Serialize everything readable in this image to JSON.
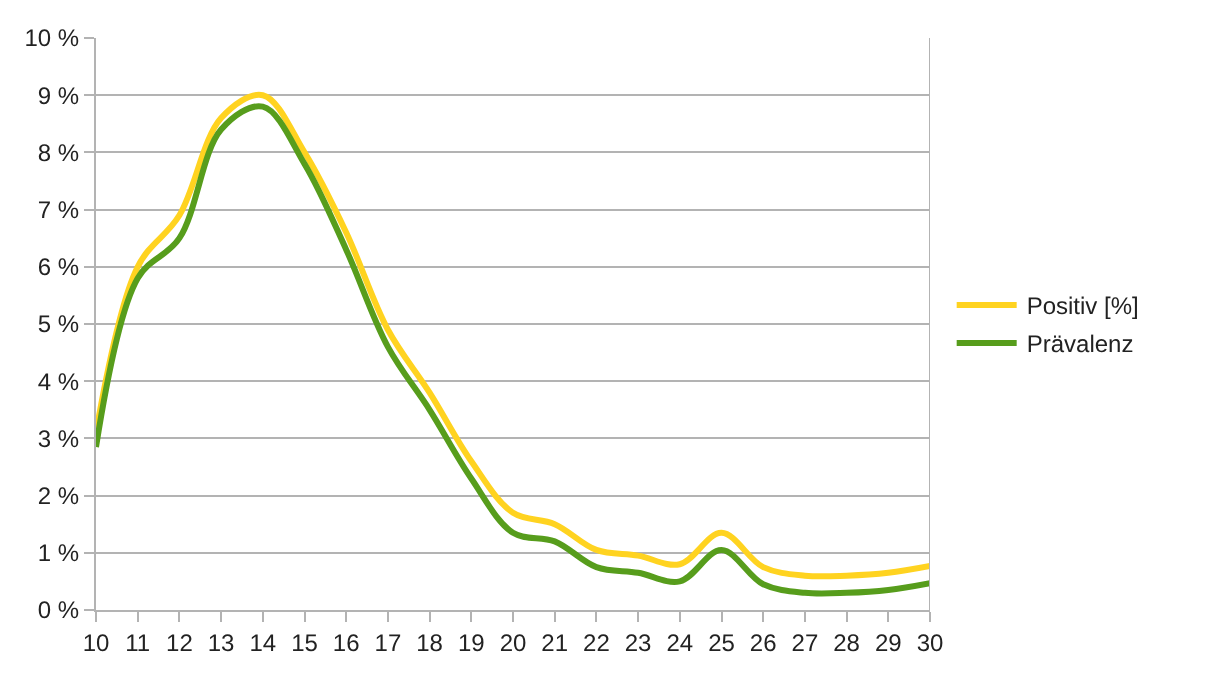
{
  "chart_data": {
    "type": "line",
    "x": [
      10,
      11,
      12,
      13,
      14,
      15,
      16,
      17,
      18,
      19,
      20,
      21,
      22,
      23,
      24,
      25,
      26,
      27,
      28,
      29,
      30
    ],
    "series": [
      {
        "name": "Positiv [%]",
        "color": "#ffd320",
        "values": [
          3.1,
          6.0,
          6.9,
          8.6,
          9.0,
          8.0,
          6.6,
          4.9,
          3.8,
          2.6,
          1.7,
          1.5,
          1.05,
          0.95,
          0.8,
          1.35,
          0.75,
          0.6,
          0.6,
          0.65,
          0.77
        ]
      },
      {
        "name": "Prävalenz",
        "color": "#579d1c",
        "values": [
          2.85,
          5.8,
          6.5,
          8.4,
          8.8,
          7.8,
          6.3,
          4.6,
          3.5,
          2.3,
          1.35,
          1.2,
          0.75,
          0.65,
          0.5,
          1.05,
          0.45,
          0.3,
          0.3,
          0.35,
          0.47
        ]
      }
    ],
    "xlim": [
      10,
      30
    ],
    "xticks": [
      10,
      11,
      12,
      13,
      14,
      15,
      16,
      17,
      18,
      19,
      20,
      21,
      22,
      23,
      24,
      25,
      26,
      27,
      28,
      29,
      30
    ],
    "ylim": [
      0,
      10
    ],
    "yticks": [
      {
        "value": 0,
        "label": "0 %"
      },
      {
        "value": 1,
        "label": "1 %"
      },
      {
        "value": 2,
        "label": "2 %"
      },
      {
        "value": 3,
        "label": "3 %"
      },
      {
        "value": 4,
        "label": "4 %"
      },
      {
        "value": 5,
        "label": "5 %"
      },
      {
        "value": 6,
        "label": "6 %"
      },
      {
        "value": 7,
        "label": "7 %"
      },
      {
        "value": 8,
        "label": "8 %"
      },
      {
        "value": 9,
        "label": "9 %"
      },
      {
        "value": 10,
        "label": "10 %"
      }
    ],
    "grid": "y",
    "legend": "right",
    "marker": "none",
    "line_style": "solid"
  }
}
